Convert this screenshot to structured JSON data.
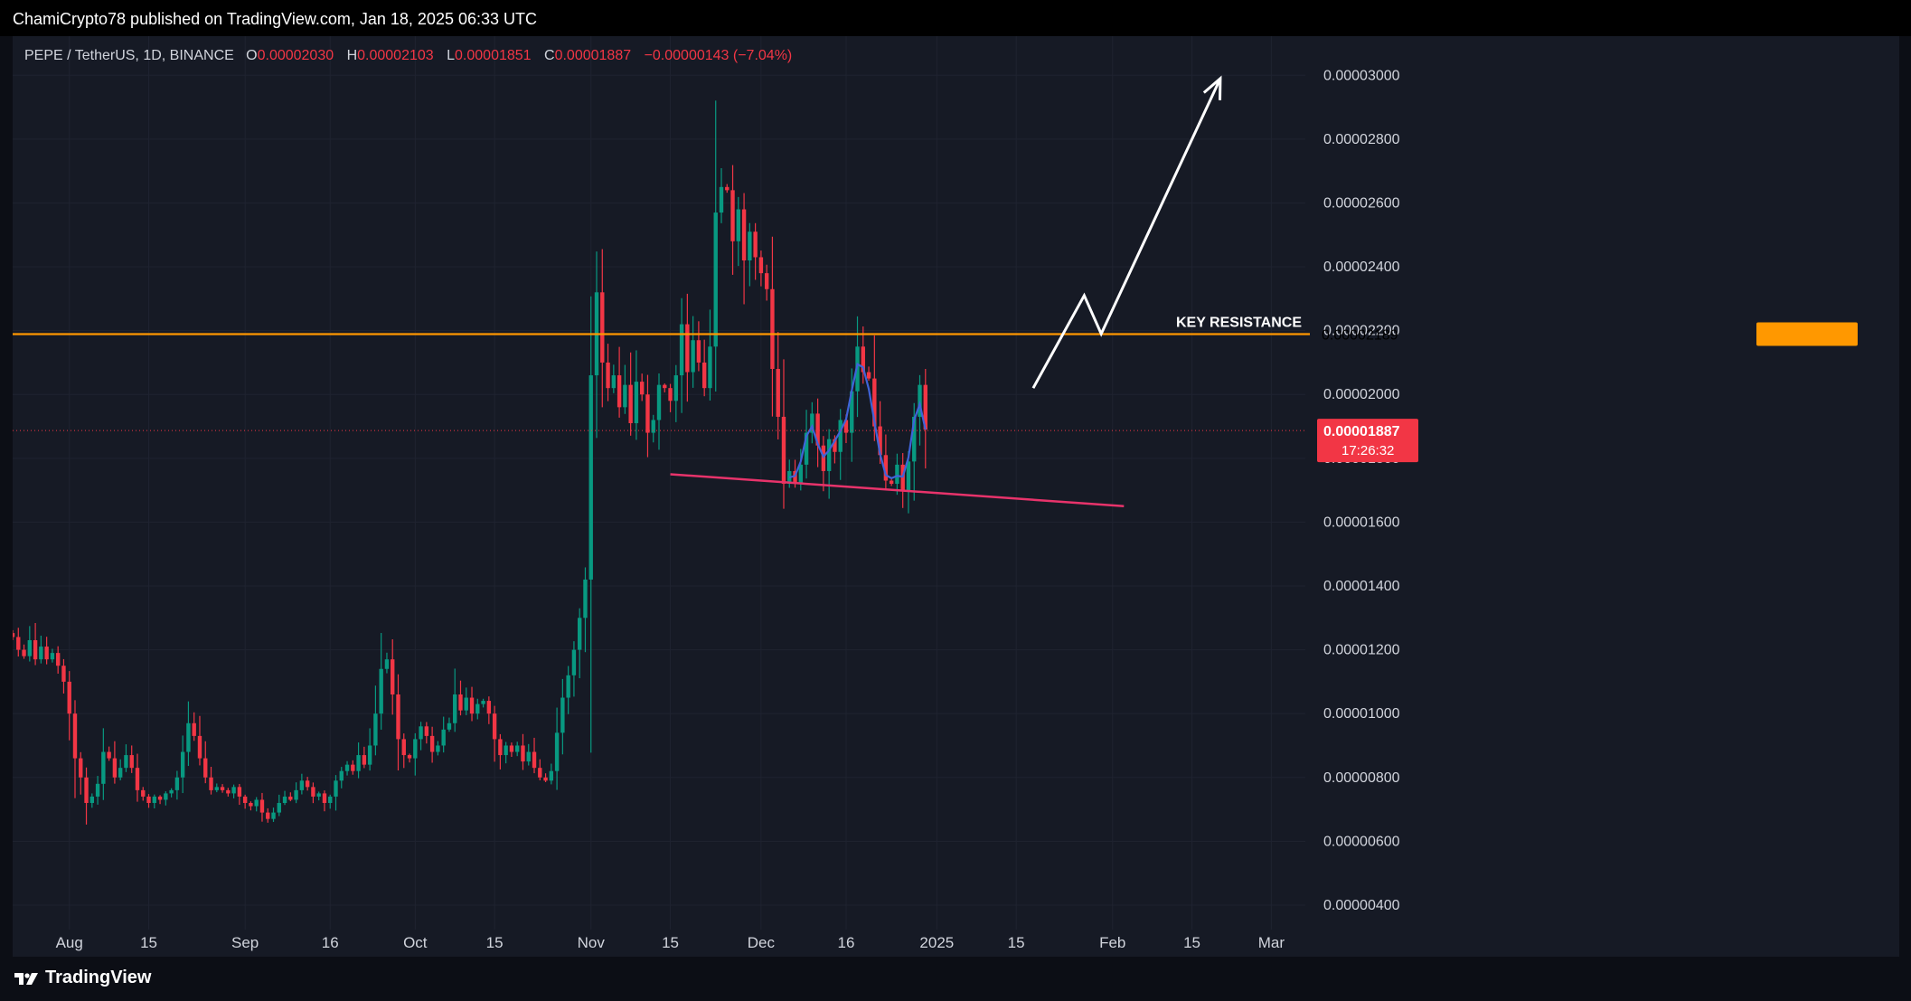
{
  "header": {
    "publisher": "ChamiCrypto78 published on TradingView.com, Jan 18, 2025 06:33 UTC"
  },
  "legend": {
    "symbol": "PEPE / TetherUS, 1D, BINANCE",
    "open_label": "O",
    "open": "0.00002030",
    "high_label": "H",
    "high": "0.00002103",
    "low_label": "L",
    "low": "0.00001851",
    "close_label": "C",
    "close": "0.00001887",
    "change": "−0.00000143 (−7.04%)"
  },
  "footer": {
    "brand": "TradingView"
  },
  "colors": {
    "up": "#089981",
    "down": "#f23645",
    "resistance": "#ff9800",
    "support": "#e8336b",
    "arc": "#3f63d8",
    "arrow": "#ffffff"
  },
  "chart_data": {
    "type": "candlestick",
    "price_axis": {
      "ylim": [
        3.8e-06,
        3.1e-05
      ],
      "ticks": [
        "0.00000400",
        "0.00000600",
        "0.00000800",
        "0.00001000",
        "0.00001200",
        "0.00001400",
        "0.00001600",
        "0.00001800",
        "0.00002000",
        "0.00002200",
        "0.00002400",
        "0.00002600",
        "0.00002800",
        "0.00003000"
      ]
    },
    "time_axis": {
      "start": "2024-07-22",
      "end": "2025-03-07",
      "ticks": [
        {
          "date": "2024-08-01",
          "label": "Aug"
        },
        {
          "date": "2024-08-15",
          "label": "15"
        },
        {
          "date": "2024-09-01",
          "label": "Sep"
        },
        {
          "date": "2024-09-16",
          "label": "16"
        },
        {
          "date": "2024-10-01",
          "label": "Oct"
        },
        {
          "date": "2024-10-15",
          "label": "15"
        },
        {
          "date": "2024-11-01",
          "label": "Nov"
        },
        {
          "date": "2024-11-15",
          "label": "15"
        },
        {
          "date": "2024-12-01",
          "label": "Dec"
        },
        {
          "date": "2024-12-16",
          "label": "16"
        },
        {
          "date": "2025-01-01",
          "label": "2025"
        },
        {
          "date": "2025-01-15",
          "label": "15"
        },
        {
          "date": "2025-02-01",
          "label": "Feb"
        },
        {
          "date": "2025-02-15",
          "label": "15"
        },
        {
          "date": "2025-03-01",
          "label": "Mar"
        }
      ]
    },
    "candles_start": "2024-07-22",
    "closes": [
      1.24,
      1.2,
      1.18,
      1.23,
      1.17,
      1.21,
      1.17,
      1.19,
      1.15,
      1.1,
      1.0,
      0.86,
      0.8,
      0.72,
      0.74,
      0.78,
      0.88,
      0.86,
      0.8,
      0.83,
      0.87,
      0.83,
      0.76,
      0.74,
      0.72,
      0.74,
      0.73,
      0.75,
      0.76,
      0.8,
      0.88,
      0.97,
      0.93,
      0.86,
      0.8,
      0.76,
      0.77,
      0.76,
      0.75,
      0.77,
      0.74,
      0.72,
      0.71,
      0.73,
      0.69,
      0.67,
      0.69,
      0.72,
      0.74,
      0.73,
      0.76,
      0.79,
      0.77,
      0.74,
      0.75,
      0.72,
      0.74,
      0.79,
      0.82,
      0.84,
      0.82,
      0.87,
      0.84,
      0.9,
      1.0,
      1.14,
      1.17,
      1.06,
      0.92,
      0.87,
      0.86,
      0.92,
      0.96,
      0.93,
      0.88,
      0.9,
      0.95,
      0.97,
      1.06,
      1.01,
      1.05,
      1.0,
      1.03,
      1.04,
      1.0,
      0.92,
      0.87,
      0.9,
      0.88,
      0.9,
      0.85,
      0.88,
      0.83,
      0.8,
      0.79,
      0.82,
      0.94,
      1.05,
      1.12,
      1.2,
      1.3,
      1.42,
      2.06,
      2.32,
      2.1,
      2.02,
      2.06,
      1.96,
      2.03,
      1.91,
      2.04,
      2.0,
      1.88,
      1.92,
      2.03,
      2.02,
      1.98,
      2.06,
      2.22,
      2.07,
      2.17,
      2.1,
      2.02,
      2.15,
      2.57,
      2.65,
      2.64,
      2.48,
      2.58,
      2.42,
      2.51,
      2.43,
      2.38,
      2.33,
      2.08,
      1.93,
      1.72,
      1.76,
      1.72,
      1.78,
      1.88,
      1.94,
      1.84,
      1.76,
      1.86,
      1.82,
      1.92,
      1.88,
      2.01,
      2.15,
      2.07,
      2.05,
      1.9,
      1.81,
      1.73,
      1.72,
      1.78,
      1.7,
      1.79,
      1.93,
      2.03,
      1.89
    ],
    "key_resistance": {
      "label": "KEY RESISTANCE",
      "value": "0.00002189"
    },
    "last_price": {
      "value": "0.00001887",
      "countdown": "17:26:32"
    },
    "support_line": {
      "from": {
        "date": "2024-11-15",
        "price": 1.75e-05
      },
      "to": {
        "date": "2025-02-03",
        "price": 1.65e-05
      }
    },
    "projection": [
      {
        "date": "2025-01-18",
        "price": 2.02e-05
      },
      {
        "date": "2025-01-27",
        "price": 2.31e-05
      },
      {
        "date": "2025-01-30",
        "price": 2.19e-05
      },
      {
        "date": "2025-02-20",
        "price": 2.99e-05
      }
    ]
  }
}
